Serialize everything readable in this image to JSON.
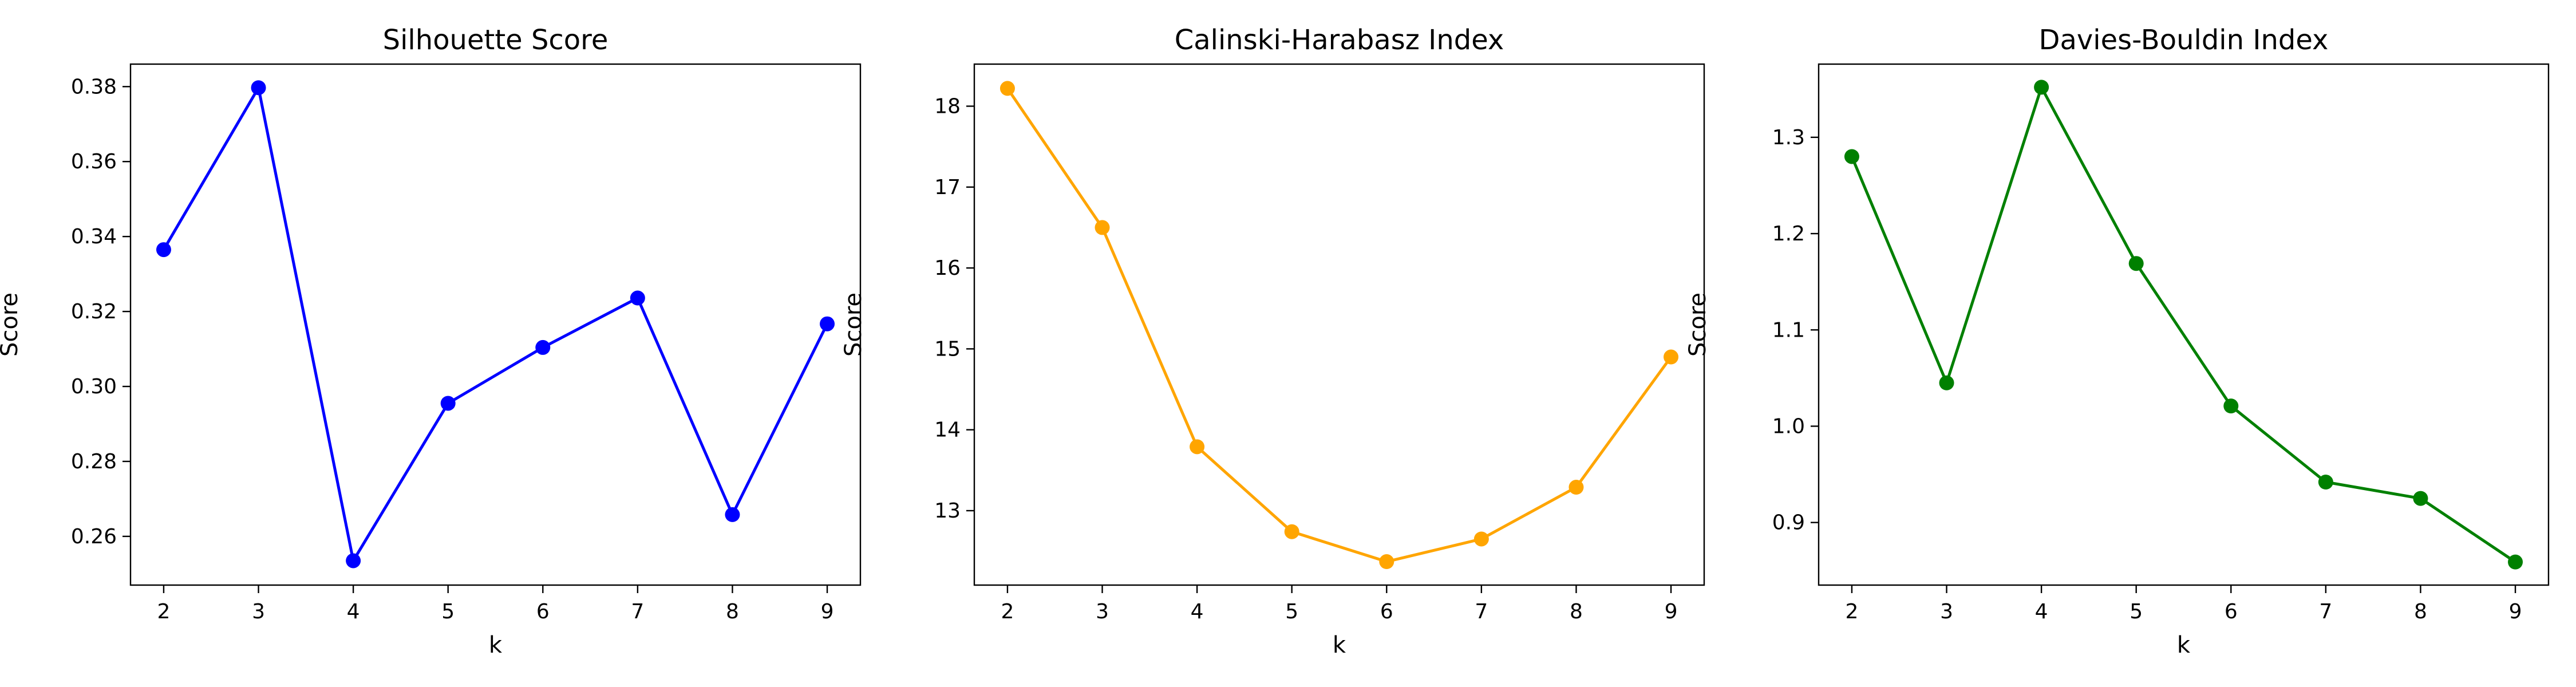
{
  "chart_data": [
    {
      "type": "line",
      "title": "Silhouette Score",
      "xlabel": "k",
      "ylabel": "Score",
      "x": [
        2,
        3,
        4,
        5,
        6,
        7,
        8,
        9
      ],
      "values": [
        0.3365,
        0.3797,
        0.2535,
        0.2955,
        0.3104,
        0.3236,
        0.2658,
        0.3167
      ],
      "color": "#0000ff",
      "xlim": [
        1.65,
        9.35
      ],
      "ylim": [
        0.247,
        0.386
      ],
      "xticks": [
        2,
        3,
        4,
        5,
        6,
        7,
        8,
        9
      ],
      "yticks": [
        0.26,
        0.28,
        0.3,
        0.32,
        0.34,
        0.36,
        0.38
      ],
      "ytick_labels": [
        "0.26",
        "0.28",
        "0.30",
        "0.32",
        "0.34",
        "0.36",
        "0.38"
      ],
      "grid": false,
      "legend": "none"
    },
    {
      "type": "line",
      "title": "Calinski-Harabasz Index",
      "xlabel": "k",
      "ylabel": "Score",
      "x": [
        2,
        3,
        4,
        5,
        6,
        7,
        8,
        9
      ],
      "values": [
        18.22,
        16.5,
        13.79,
        12.74,
        12.37,
        12.65,
        13.29,
        14.9
      ],
      "color": "#ffa500",
      "xlim": [
        1.65,
        9.35
      ],
      "ylim": [
        12.08,
        18.52
      ],
      "xticks": [
        2,
        3,
        4,
        5,
        6,
        7,
        8,
        9
      ],
      "yticks": [
        13,
        14,
        15,
        16,
        17,
        18
      ],
      "ytick_labels": [
        "13",
        "14",
        "15",
        "16",
        "17",
        "18"
      ],
      "grid": false,
      "legend": "none"
    },
    {
      "type": "line",
      "title": "Davies-Bouldin Index",
      "xlabel": "k",
      "ylabel": "Score",
      "x": [
        2,
        3,
        4,
        5,
        6,
        7,
        8,
        9
      ],
      "values": [
        1.28,
        1.045,
        1.352,
        1.169,
        1.021,
        0.942,
        0.925,
        0.859
      ],
      "color": "#008000",
      "xlim": [
        1.65,
        9.35
      ],
      "ylim": [
        0.835,
        1.376
      ],
      "xticks": [
        2,
        3,
        4,
        5,
        6,
        7,
        8,
        9
      ],
      "yticks": [
        0.9,
        1.0,
        1.1,
        1.2,
        1.3
      ],
      "ytick_labels": [
        "0.9",
        "1.0",
        "1.1",
        "1.2",
        "1.3"
      ],
      "grid": false,
      "legend": "none"
    }
  ]
}
